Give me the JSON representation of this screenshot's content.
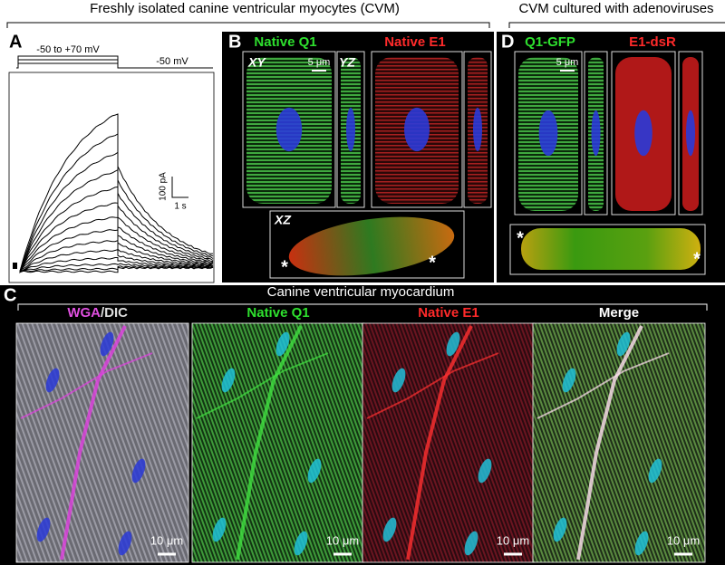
{
  "header": {
    "left": "Freshly isolated canine ventricular myocytes (CVM)",
    "right": "CVM cultured with adenoviruses"
  },
  "panel_a": {
    "label": "A",
    "step": "-50 to +70 mV",
    "holding": "-50 mV",
    "scale_current": "100 pA",
    "scale_time": "1 s"
  },
  "panel_b": {
    "label": "B",
    "title_q1": "Native Q1",
    "title_e1": "Native E1",
    "view_xy": "XY",
    "view_yz": "YZ",
    "view_xz": "XZ",
    "scale": "5 μm",
    "asterisks": [
      "*",
      "*"
    ]
  },
  "panel_d": {
    "label": "D",
    "title_q1": "Q1-GFP",
    "title_e1": "E1-dsR",
    "scale": "5 μm",
    "asterisks": [
      "*",
      "*"
    ]
  },
  "panel_c": {
    "label": "C",
    "title": "Canine ventricular myocardium",
    "panels": [
      {
        "title": "WGA",
        "title_suffix": "/DIC",
        "scale": "10 μm"
      },
      {
        "title": "Native Q1",
        "scale": "10 μm"
      },
      {
        "title": "Native E1",
        "scale": "10 μm"
      },
      {
        "title": "Merge",
        "scale": "10 μm"
      }
    ]
  }
}
